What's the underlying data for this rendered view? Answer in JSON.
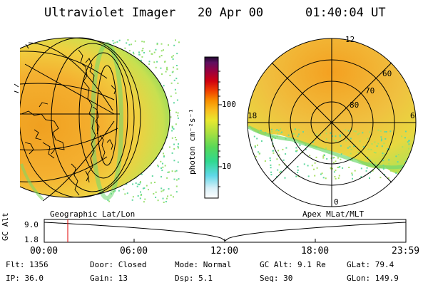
{
  "header": {
    "instrument": "Ultraviolet Imager",
    "date": "20 Apr 00",
    "time": "01:40:04 UT"
  },
  "colorbar": {
    "unit_label": "photon cm⁻²s⁻¹",
    "ticks": [
      "100",
      "10"
    ],
    "colors": [
      "#ffffff",
      "#d8f0f8",
      "#60d8e8",
      "#30d890",
      "#58d858",
      "#a8e040",
      "#e8e830",
      "#f8c020",
      "#f89000",
      "#f04000",
      "#d00010",
      "#980040",
      "#601060",
      "#200830"
    ]
  },
  "left_panel": {
    "label": "Geographic Lat/Lon"
  },
  "right_panel": {
    "label": "Apex MLat/MLT",
    "mlt_labels": [
      "12",
      "18",
      "6",
      "0"
    ],
    "lat_labels": [
      "60",
      "70",
      "80"
    ]
  },
  "timeline": {
    "y_axis_label": "GC Alt",
    "y_ticks": [
      "9.0",
      "1.8"
    ],
    "x_ticks": [
      "00:00",
      "06:00",
      "12:00",
      "18:00",
      "23:59"
    ],
    "marker_time": "01:40"
  },
  "info": {
    "flt": "Flt: 1356",
    "ip": "IP: 36.0",
    "door": "Door: Closed",
    "gain": "Gain: 13",
    "mode": "Mode: Normal",
    "dsp": "Dsp:    5.1",
    "gc_alt": "GC Alt: 9.1 Re",
    "seq": "Seq: 30",
    "glat": "GLat:  79.4",
    "glon": "GLon: 149.9"
  }
}
